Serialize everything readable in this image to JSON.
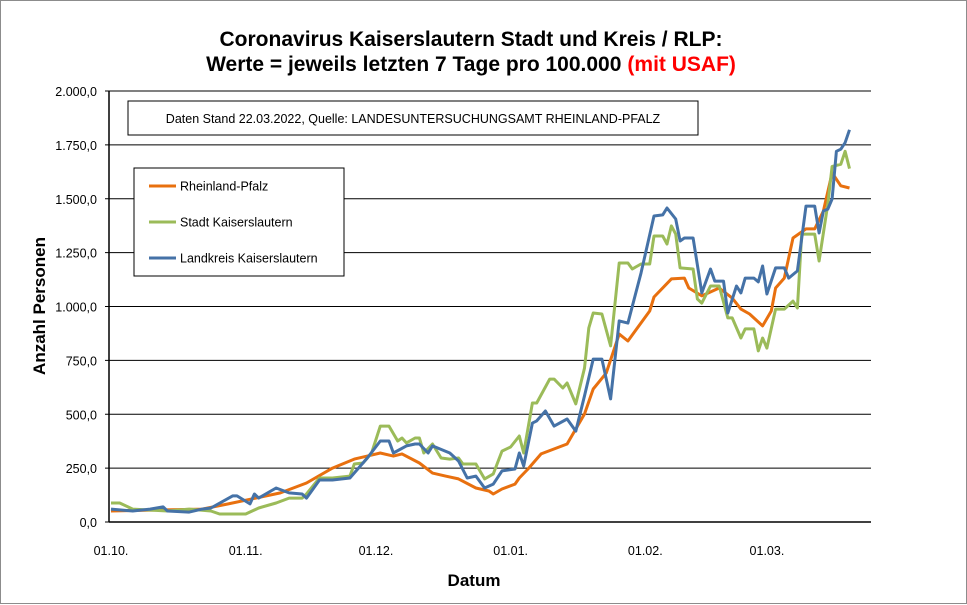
{
  "chart_data": {
    "type": "line",
    "title_line1": "Coronavirus Kaiserslautern Stadt und Kreis / RLP:",
    "title_line2": "Werte = jeweils letzten 7 Tage pro 100.000",
    "title_highlight": "(mit USAF)",
    "note": "Daten Stand 22.03.2022, Quelle: LANDESUNTERSUCHUNGSAMT RHEINLAND-PFALZ",
    "xlabel": "Datum",
    "ylabel": "Anzahl Personen",
    "ylim": [
      0,
      2000
    ],
    "yticks": [
      0,
      250,
      500,
      750,
      1000,
      1250,
      1500,
      1750,
      2000
    ],
    "ytick_labels": [
      "0,0",
      "250,0",
      "500,0",
      "750,0",
      "1.000,0",
      "1.250,0",
      "1.500,0",
      "1.750,0",
      "2.000,0"
    ],
    "x_unit": "days since 01.10.",
    "xlim": [
      0,
      175
    ],
    "xticks": [
      {
        "day": 0,
        "label": "01.10."
      },
      {
        "day": 31,
        "label": "01.11."
      },
      {
        "day": 61,
        "label": "01.12."
      },
      {
        "day": 92,
        "label": "01.01."
      },
      {
        "day": 123,
        "label": "01.02."
      },
      {
        "day": 151,
        "label": "01.03."
      }
    ],
    "grid": true,
    "legend_position": "top-left",
    "highlight_color": "#ff0000",
    "series": [
      {
        "name": "Rheinland-Pfalz",
        "color": "#e8700f",
        "points": [
          [
            0,
            51
          ],
          [
            21,
            60
          ],
          [
            27,
            84
          ],
          [
            39,
            135
          ],
          [
            45,
            181
          ],
          [
            51,
            250
          ],
          [
            56,
            292
          ],
          [
            59,
            306
          ],
          [
            62,
            320
          ],
          [
            65,
            306
          ],
          [
            67,
            316
          ],
          [
            71,
            274
          ],
          [
            74,
            227
          ],
          [
            77,
            213
          ],
          [
            80,
            200
          ],
          [
            84,
            158
          ],
          [
            87,
            144
          ],
          [
            88,
            130
          ],
          [
            90,
            153
          ],
          [
            93,
            176
          ],
          [
            94,
            204
          ],
          [
            96,
            246
          ],
          [
            99,
            316
          ],
          [
            105,
            362
          ],
          [
            109,
            501
          ],
          [
            111,
            617
          ],
          [
            114,
            691
          ],
          [
            117,
            872
          ],
          [
            119,
            840
          ],
          [
            124,
            979
          ],
          [
            125,
            1044
          ],
          [
            129,
            1128
          ],
          [
            132,
            1132
          ],
          [
            133,
            1086
          ],
          [
            136,
            1049
          ],
          [
            140,
            1086
          ],
          [
            143,
            1039
          ],
          [
            145,
            988
          ],
          [
            147,
            965
          ],
          [
            150,
            910
          ],
          [
            152,
            979
          ],
          [
            153,
            1086
          ],
          [
            155,
            1132
          ],
          [
            157,
            1318
          ],
          [
            160,
            1360
          ],
          [
            162,
            1360
          ],
          [
            164,
            1443
          ],
          [
            166,
            1620
          ],
          [
            168,
            1560
          ],
          [
            170,
            1550
          ]
        ]
      },
      {
        "name": "Stadt Kaiserslautern",
        "color": "#9bbb59",
        "points": [
          [
            0,
            88
          ],
          [
            2,
            88
          ],
          [
            5,
            60
          ],
          [
            13,
            51
          ],
          [
            18,
            60
          ],
          [
            23,
            51
          ],
          [
            25,
            37
          ],
          [
            31,
            37
          ],
          [
            34,
            65
          ],
          [
            38,
            88
          ],
          [
            41,
            111
          ],
          [
            44,
            111
          ],
          [
            45,
            130
          ],
          [
            48,
            204
          ],
          [
            51,
            204
          ],
          [
            55,
            213
          ],
          [
            56,
            269
          ],
          [
            58,
            274
          ],
          [
            60,
            320
          ],
          [
            62,
            445
          ],
          [
            64,
            445
          ],
          [
            66,
            376
          ],
          [
            67,
            390
          ],
          [
            68,
            367
          ],
          [
            70,
            390
          ],
          [
            71,
            390
          ],
          [
            72,
            320
          ],
          [
            74,
            362
          ],
          [
            76,
            297
          ],
          [
            78,
            292
          ],
          [
            80,
            297
          ],
          [
            81,
            269
          ],
          [
            84,
            269
          ],
          [
            86,
            200
          ],
          [
            88,
            223
          ],
          [
            90,
            329
          ],
          [
            92,
            348
          ],
          [
            94,
            399
          ],
          [
            95,
            320
          ],
          [
            97,
            552
          ],
          [
            98,
            552
          ],
          [
            101,
            663
          ],
          [
            102,
            663
          ],
          [
            104,
            622
          ],
          [
            105,
            645
          ],
          [
            107,
            548
          ],
          [
            109,
            714
          ],
          [
            110,
            900
          ],
          [
            111,
            970
          ],
          [
            113,
            965
          ],
          [
            115,
            817
          ],
          [
            117,
            1202
          ],
          [
            119,
            1202
          ],
          [
            120,
            1174
          ],
          [
            122,
            1197
          ],
          [
            124,
            1197
          ],
          [
            125,
            1327
          ],
          [
            127,
            1327
          ],
          [
            128,
            1290
          ],
          [
            129,
            1374
          ],
          [
            130,
            1336
          ],
          [
            131,
            1179
          ],
          [
            134,
            1174
          ],
          [
            135,
            1035
          ],
          [
            136,
            1016
          ],
          [
            138,
            1095
          ],
          [
            140,
            1095
          ],
          [
            142,
            947
          ],
          [
            143,
            947
          ],
          [
            145,
            854
          ],
          [
            146,
            896
          ],
          [
            148,
            896
          ],
          [
            149,
            794
          ],
          [
            150,
            854
          ],
          [
            151,
            807
          ],
          [
            153,
            988
          ],
          [
            155,
            988
          ],
          [
            157,
            1025
          ],
          [
            158,
            993
          ],
          [
            159,
            1336
          ],
          [
            162,
            1336
          ],
          [
            163,
            1211
          ],
          [
            165,
            1475
          ],
          [
            166,
            1650
          ],
          [
            168,
            1660
          ],
          [
            169,
            1720
          ],
          [
            170,
            1640
          ]
        ]
      },
      {
        "name": "Landkreis Kaiserslautern",
        "color": "#4572a7",
        "points": [
          [
            0,
            60
          ],
          [
            5,
            51
          ],
          [
            9,
            60
          ],
          [
            12,
            70
          ],
          [
            13,
            51
          ],
          [
            18,
            46
          ],
          [
            21,
            60
          ],
          [
            23,
            65
          ],
          [
            28,
            121
          ],
          [
            29,
            121
          ],
          [
            32,
            84
          ],
          [
            33,
            130
          ],
          [
            34,
            111
          ],
          [
            38,
            158
          ],
          [
            41,
            135
          ],
          [
            44,
            130
          ],
          [
            45,
            111
          ],
          [
            48,
            195
          ],
          [
            51,
            195
          ],
          [
            55,
            204
          ],
          [
            59,
            297
          ],
          [
            62,
            376
          ],
          [
            64,
            376
          ],
          [
            65,
            320
          ],
          [
            68,
            353
          ],
          [
            70,
            362
          ],
          [
            71,
            362
          ],
          [
            73,
            320
          ],
          [
            74,
            353
          ],
          [
            78,
            320
          ],
          [
            80,
            283
          ],
          [
            82,
            204
          ],
          [
            84,
            213
          ],
          [
            86,
            158
          ],
          [
            88,
            176
          ],
          [
            90,
            237
          ],
          [
            93,
            246
          ],
          [
            94,
            320
          ],
          [
            95,
            260
          ],
          [
            97,
            459
          ],
          [
            98,
            469
          ],
          [
            100,
            515
          ],
          [
            102,
            445
          ],
          [
            105,
            478
          ],
          [
            107,
            422
          ],
          [
            109,
            585
          ],
          [
            111,
            756
          ],
          [
            113,
            756
          ],
          [
            115,
            571
          ],
          [
            117,
            933
          ],
          [
            119,
            923
          ],
          [
            122,
            1155
          ],
          [
            125,
            1420
          ],
          [
            127,
            1425
          ],
          [
            128,
            1457
          ],
          [
            130,
            1406
          ],
          [
            131,
            1304
          ],
          [
            132,
            1318
          ],
          [
            134,
            1318
          ],
          [
            136,
            1063
          ],
          [
            138,
            1174
          ],
          [
            139,
            1118
          ],
          [
            141,
            1118
          ],
          [
            142,
            970
          ],
          [
            144,
            1095
          ],
          [
            145,
            1063
          ],
          [
            146,
            1132
          ],
          [
            148,
            1132
          ],
          [
            149,
            1114
          ],
          [
            150,
            1188
          ],
          [
            151,
            1058
          ],
          [
            153,
            1179
          ],
          [
            155,
            1179
          ],
          [
            156,
            1132
          ],
          [
            158,
            1165
          ],
          [
            160,
            1466
          ],
          [
            162,
            1466
          ],
          [
            163,
            1341
          ],
          [
            164,
            1443
          ],
          [
            165,
            1452
          ],
          [
            166,
            1499
          ],
          [
            167,
            1720
          ],
          [
            168,
            1730
          ],
          [
            169,
            1760
          ],
          [
            170,
            1820
          ]
        ]
      }
    ]
  }
}
